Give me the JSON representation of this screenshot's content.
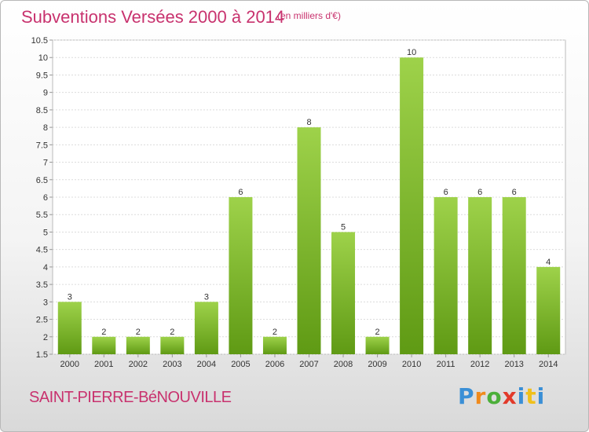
{
  "header": {
    "title": "Subventions Versées 2000 à 2014",
    "subtitle": "(en milliers d'€)"
  },
  "footer": {
    "commune": "SAINT-PIERRE-BéNOUVILLE",
    "logo_text": "Proxiti"
  },
  "colors": {
    "accent": "#c8326e",
    "bar_top": "#9ed24a",
    "bar_bottom": "#5f9a14"
  },
  "chart_data": {
    "type": "bar",
    "title": "Subventions Versées 2000 à 2014",
    "subtitle": "(en milliers d'€)",
    "categories": [
      "2000",
      "2001",
      "2002",
      "2003",
      "2004",
      "2005",
      "2006",
      "2007",
      "2008",
      "2009",
      "2010",
      "2011",
      "2012",
      "2013",
      "2014"
    ],
    "values": [
      3,
      2,
      2,
      2,
      3,
      6,
      2,
      8,
      5,
      2,
      10,
      6,
      6,
      6,
      4
    ],
    "value_labels": [
      "3",
      "2",
      "2",
      "2",
      "3",
      "6",
      "2",
      "8",
      "5",
      "2",
      "10",
      "6",
      "6",
      "6",
      "4"
    ],
    "ylim": [
      1.5,
      10.5
    ],
    "yticks": [
      "1.5",
      "2",
      "2.5",
      "3",
      "3.5",
      "4",
      "4.5",
      "5",
      "5.5",
      "6",
      "6.5",
      "7",
      "7.5",
      "8",
      "8.5",
      "9",
      "9.5",
      "10",
      "10.5"
    ],
    "grid": true,
    "legend": "none"
  }
}
